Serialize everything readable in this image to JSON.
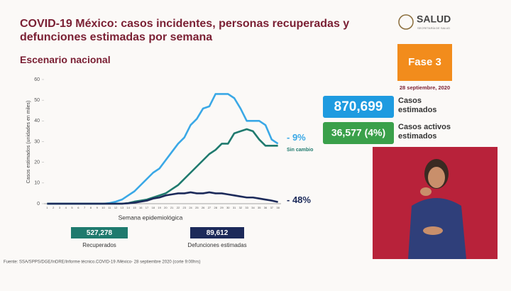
{
  "chart_data": {
    "type": "line",
    "title": "COVID-19 México: casos incidentes, personas recuperadas y defunciones estimadas por semana",
    "subtitle": "Escenario nacional",
    "x_label": "Semana epidemiológica",
    "y_label": "Casos estimados (unidades en miles)",
    "categories": [
      1,
      2,
      3,
      4,
      5,
      6,
      7,
      8,
      9,
      10,
      11,
      12,
      13,
      14,
      15,
      16,
      17,
      18,
      19,
      20,
      21,
      22,
      23,
      24,
      25,
      26,
      27,
      28,
      29,
      30,
      31,
      32,
      33,
      34,
      35,
      36,
      37,
      38
    ],
    "series": [
      {
        "color": "#3aa8e6",
        "values": [
          0,
          0,
          0,
          0,
          0,
          0,
          0,
          0,
          0,
          0,
          0.3,
          1,
          2,
          4,
          6,
          9,
          12,
          15,
          17,
          21,
          25,
          29,
          32,
          38,
          41,
          46,
          47,
          53,
          53,
          53,
          51,
          46,
          40,
          40,
          40,
          38,
          31,
          29
        ]
      },
      {
        "color": "#1f7a6e",
        "values": [
          0,
          0,
          0,
          0,
          0,
          0,
          0,
          0,
          0,
          0,
          0,
          0,
          0,
          0.3,
          1,
          1.5,
          2,
          3,
          4,
          5,
          7,
          9,
          12,
          15,
          18,
          21,
          24,
          26,
          29,
          29,
          34,
          35,
          36,
          35,
          31,
          28,
          28,
          28
        ]
      },
      {
        "color": "#1c2a5a",
        "values": [
          0,
          0,
          0,
          0,
          0,
          0,
          0,
          0,
          0,
          0,
          0,
          0,
          0,
          0.2,
          0.5,
          1,
          1.5,
          2.5,
          3,
          4,
          4.5,
          5,
          5,
          5.5,
          5,
          5,
          5.5,
          5,
          5,
          4.5,
          4,
          3.5,
          3,
          3,
          2.5,
          2,
          1.5,
          0.8
        ]
      }
    ],
    "ylim": [
      0,
      60
    ],
    "yticks": [
      0,
      10,
      20,
      30,
      40,
      50,
      60
    ],
    "grid": false,
    "annotations": [
      "- 9%",
      "Sin cambio",
      "- 48%"
    ]
  },
  "summaries": [
    {
      "value": "527,278",
      "label": "Recuperados"
    },
    {
      "value": "89,612",
      "label": "Defunciones estimadas"
    }
  ],
  "logo": {
    "name": "SALUD",
    "subtitle": "SECRETARÍA DE SALUD"
  },
  "phase": "Fase 3",
  "date": "28 septiembre, 2020",
  "kpis": [
    {
      "value": "870,699",
      "label": "Casos estimados"
    },
    {
      "value": "36,577 (4%)",
      "label": "Casos activos estimados"
    }
  ],
  "source": "Fuente: SSA/SPPS/DGE/InDRE/Informe técnico.COVID-19 /México- 28 septiembre 2020 (corte 9:00hrs)"
}
